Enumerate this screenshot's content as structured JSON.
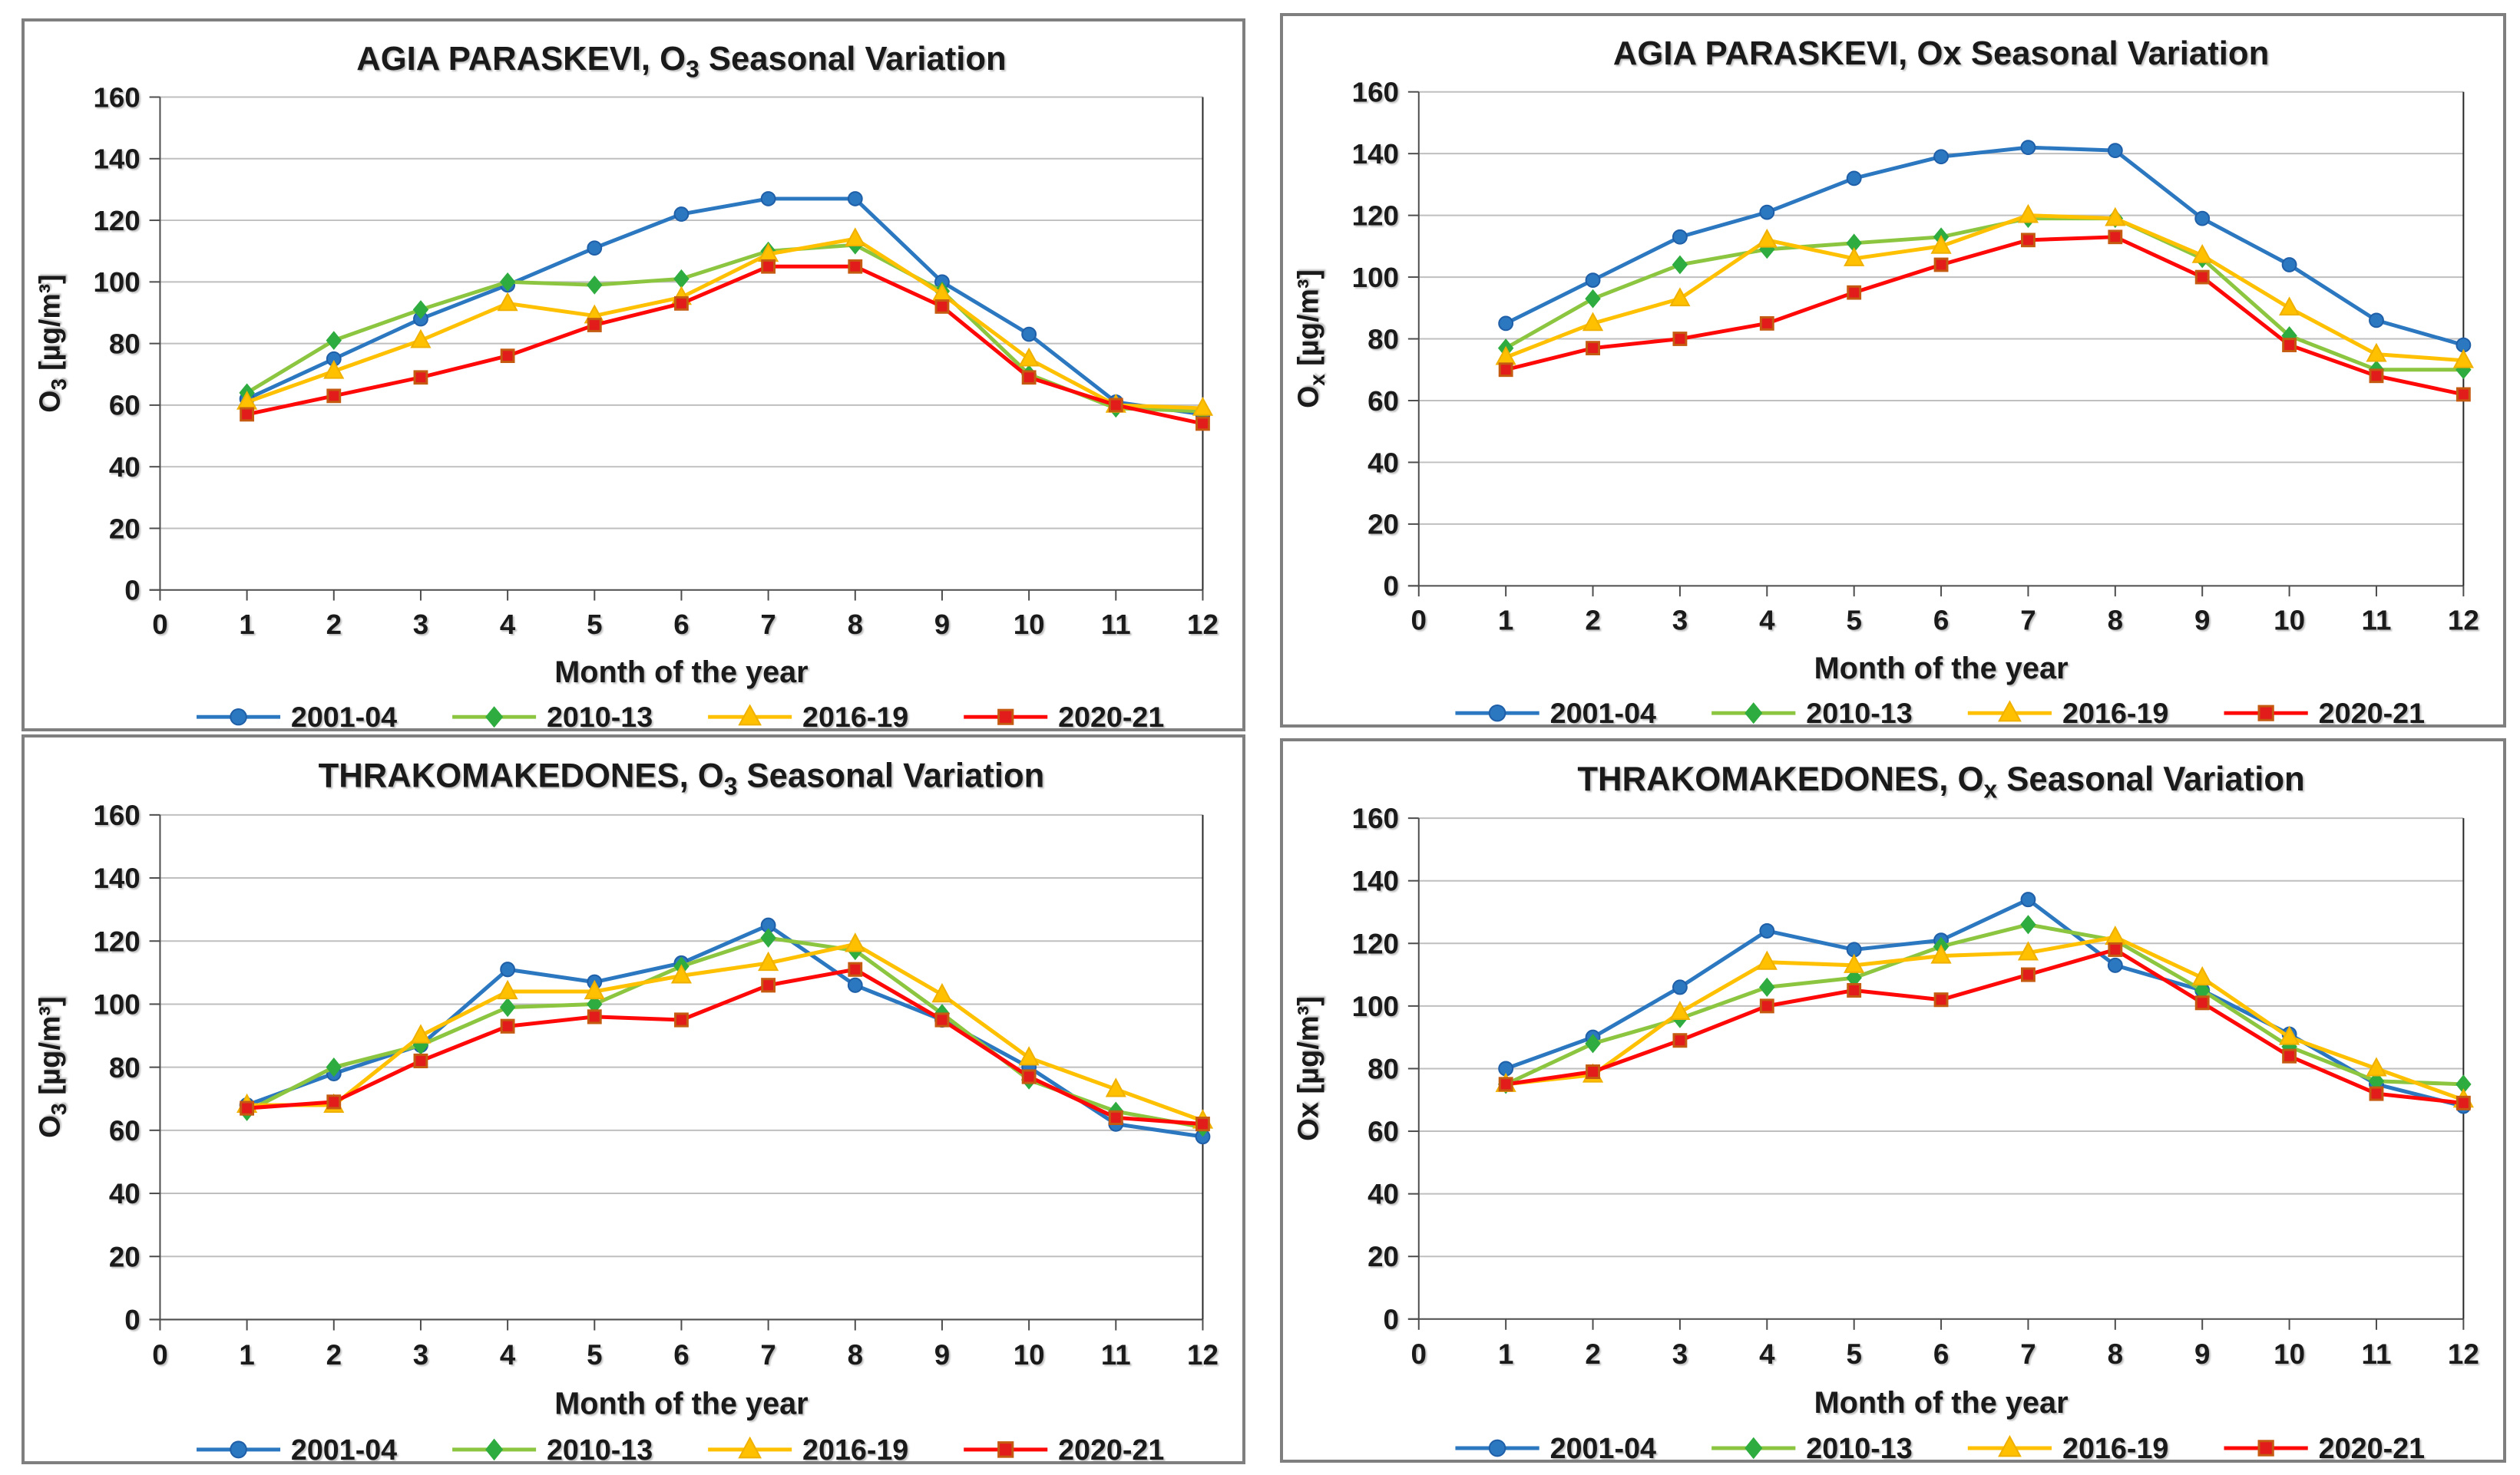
{
  "page": {
    "background": "#ffffff",
    "panel_border_color": "#7f7f7f",
    "grid_color": "#bfbfbf",
    "axis_color": "#4d4d4d",
    "plot_right_border_color": "#262626",
    "text_color": "#1a1a1a"
  },
  "series_styles": [
    {
      "name": "2001-04",
      "marker": "circle",
      "line_color": "#2b77c0",
      "marker_fill": "#2b77c0",
      "marker_stroke": "#1f5fa8"
    },
    {
      "name": "2010-13",
      "marker": "diamond",
      "line_color": "#8cc540",
      "marker_fill": "#2fac3f",
      "marker_stroke": "#2fac3f"
    },
    {
      "name": "2016-19",
      "marker": "triangle",
      "line_color": "#ffc000",
      "marker_fill": "#ffc000",
      "marker_stroke": "#efb000"
    },
    {
      "name": "2020-21",
      "marker": "square",
      "line_color": "#fe0808",
      "marker_fill": "#e21b1b",
      "marker_stroke": "#c55a11"
    }
  ],
  "chart_data": [
    {
      "type": "line",
      "position": "top-left",
      "title": "AGIA PARASKEVI, O3 Seasonal Variation",
      "title_parts": {
        "pre": "AGIA PARASKEVI, O",
        "sub": "3",
        "post": " Seasonal Variation"
      },
      "ylabel": "O3 [µg/m³]",
      "ylabel_parts": {
        "pre": "O",
        "sub": "3",
        "post": " [µg/m³]"
      },
      "xlabel": "Month of the year",
      "x": [
        1,
        2,
        3,
        4,
        5,
        6,
        7,
        8,
        9,
        10,
        11,
        12
      ],
      "x_ticks": [
        0,
        1,
        2,
        3,
        4,
        5,
        6,
        7,
        8,
        9,
        10,
        11,
        12
      ],
      "ylim": [
        0,
        160
      ],
      "y_ticks": [
        0,
        20,
        40,
        60,
        80,
        100,
        120,
        140,
        160
      ],
      "grid": true,
      "legend_position": "bottom",
      "series": [
        {
          "name": "2001-04",
          "values": [
            62,
            75,
            88,
            99,
            111,
            122,
            127,
            127,
            100,
            83,
            61,
            57
          ]
        },
        {
          "name": "2010-13",
          "values": [
            64,
            81,
            91,
            100,
            99,
            101,
            110,
            112,
            97,
            70,
            59,
            58
          ]
        },
        {
          "name": "2016-19",
          "values": [
            61,
            71,
            81,
            93,
            89,
            95,
            109,
            114,
            96,
            75,
            60,
            59
          ]
        },
        {
          "name": "2020-21",
          "values": [
            57,
            63,
            69,
            76,
            86,
            93,
            105,
            105,
            92,
            69,
            60,
            54
          ]
        }
      ]
    },
    {
      "type": "line",
      "position": "top-right",
      "title": "AGIA PARASKEVI, Ox Seasonal Variation",
      "title_parts": {
        "pre": "AGIA PARASKEVI, Ox Seasonal Variation",
        "sub": "",
        "post": ""
      },
      "ylabel": "Ox [µg/m³]",
      "ylabel_parts": {
        "pre": "O",
        "sub": "x",
        "post": " [µg/m³]"
      },
      "xlabel": "Month of the year",
      "x": [
        1,
        2,
        3,
        4,
        5,
        6,
        7,
        8,
        9,
        10,
        11,
        12
      ],
      "x_ticks": [
        0,
        1,
        2,
        3,
        4,
        5,
        6,
        7,
        8,
        9,
        10,
        11,
        12
      ],
      "ylim": [
        0,
        160
      ],
      "y_ticks": [
        0,
        20,
        40,
        60,
        80,
        100,
        120,
        140,
        160
      ],
      "grid": true,
      "legend_position": "bottom",
      "series": [
        {
          "name": "2001-04",
          "values": [
            85,
            99,
            113,
            121,
            132,
            139,
            142,
            141,
            119,
            104,
            86,
            78
          ]
        },
        {
          "name": "2010-13",
          "values": [
            77,
            93,
            104,
            109,
            111,
            113,
            119,
            119,
            106,
            81,
            70,
            70
          ]
        },
        {
          "name": "2016-19",
          "values": [
            74,
            85,
            93,
            112,
            106,
            110,
            120,
            119,
            107,
            90,
            75,
            73
          ]
        },
        {
          "name": "2020-21",
          "values": [
            70,
            77,
            80,
            85,
            95,
            104,
            112,
            113,
            100,
            78,
            68,
            62
          ]
        }
      ]
    },
    {
      "type": "line",
      "position": "bottom-left",
      "title": "THRAKOMAKEDONES, O3 Seasonal Variation",
      "title_parts": {
        "pre": "THRAKOMAKEDONES, O",
        "sub": "3",
        "post": " Seasonal Variation"
      },
      "ylabel": "O3 [µg/m³]",
      "ylabel_parts": {
        "pre": "O",
        "sub": "3",
        "post": " [µg/m³]"
      },
      "xlabel": "Month of the year",
      "x": [
        1,
        2,
        3,
        4,
        5,
        6,
        7,
        8,
        9,
        10,
        11,
        12
      ],
      "x_ticks": [
        0,
        1,
        2,
        3,
        4,
        5,
        6,
        7,
        8,
        9,
        10,
        11,
        12
      ],
      "ylim": [
        0,
        160
      ],
      "y_ticks": [
        0,
        20,
        40,
        60,
        80,
        100,
        120,
        140,
        160
      ],
      "grid": true,
      "legend_position": "bottom",
      "series": [
        {
          "name": "2001-04",
          "values": [
            68,
            78,
            87,
            111,
            107,
            113,
            125,
            106,
            95,
            80,
            62,
            58
          ]
        },
        {
          "name": "2010-13",
          "values": [
            66,
            80,
            87,
            99,
            100,
            112,
            121,
            117,
            97,
            76,
            66,
            61
          ]
        },
        {
          "name": "2016-19",
          "values": [
            68,
            68,
            90,
            104,
            104,
            109,
            113,
            119,
            103,
            83,
            73,
            63
          ]
        },
        {
          "name": "2020-21",
          "values": [
            67,
            69,
            82,
            93,
            96,
            95,
            106,
            111,
            95,
            77,
            64,
            62
          ]
        }
      ]
    },
    {
      "type": "line",
      "position": "bottom-right",
      "title": "THRAKOMAKEDONES, Ox Seasonal Variation",
      "title_parts": {
        "pre": "THRAKOMAKEDONES, O",
        "sub": "x",
        "post": " Seasonal Variation"
      },
      "ylabel": "Ox [µg/m³]",
      "ylabel_parts": {
        "pre": "Ox [µg/m³]",
        "sub": "",
        "post": ""
      },
      "xlabel": "Month of the year",
      "x": [
        1,
        2,
        3,
        4,
        5,
        6,
        7,
        8,
        9,
        10,
        11,
        12
      ],
      "x_ticks": [
        0,
        1,
        2,
        3,
        4,
        5,
        6,
        7,
        8,
        9,
        10,
        11,
        12
      ],
      "ylim": [
        0,
        160
      ],
      "y_ticks": [
        0,
        20,
        40,
        60,
        80,
        100,
        120,
        140,
        160
      ],
      "grid": true,
      "legend_position": "bottom",
      "series": [
        {
          "name": "2001-04",
          "values": [
            80,
            90,
            106,
            124,
            118,
            121,
            134,
            113,
            105,
            91,
            75,
            68
          ]
        },
        {
          "name": "2010-13",
          "values": [
            75,
            88,
            96,
            106,
            109,
            119,
            126,
            121,
            105,
            87,
            76,
            75
          ]
        },
        {
          "name": "2016-19",
          "values": [
            75,
            78,
            98,
            114,
            113,
            116,
            117,
            122,
            109,
            90,
            80,
            70
          ]
        },
        {
          "name": "2020-21",
          "values": [
            75,
            79,
            89,
            100,
            105,
            102,
            110,
            118,
            101,
            84,
            72,
            69
          ]
        }
      ]
    }
  ]
}
